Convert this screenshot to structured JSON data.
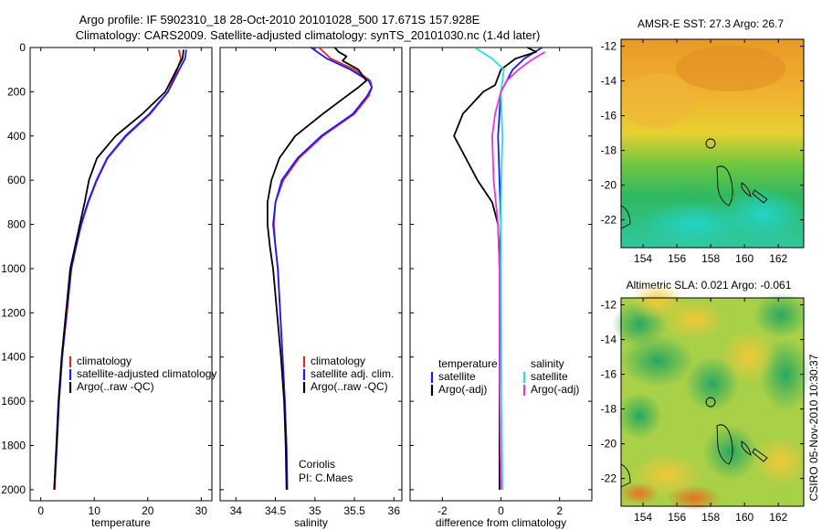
{
  "header": {
    "line1": "Argo profile: IF 5902310_18 28-Oct-2010 20101028_500 17.671S 157.928E",
    "line2": "Climatology: CARS2009. Satellite-adjusted climatology: synTS_20101030.nc (1.4d later)"
  },
  "side_stamp": "CSIRO 05-Nov-2010 10:30:37",
  "colors": {
    "climatology": "#e8261e",
    "satellite": "#1a1aff",
    "argo": "#000000",
    "cyan": "#22e0e8",
    "magenta": "#ee33dd"
  },
  "chart_data": [
    {
      "type": "line",
      "xlabel": "temperature",
      "xlim": [
        -2,
        32
      ],
      "ylim": [
        0,
        2050
      ],
      "y_reversed": true,
      "xticks": [
        0,
        10,
        20,
        30
      ],
      "yticks": [
        0,
        200,
        400,
        600,
        800,
        1000,
        1200,
        1400,
        1600,
        1800,
        2000
      ],
      "legend": [
        "climatology",
        "satellite-adjusted climatology",
        "Argo(..raw -QC)"
      ],
      "series": [
        {
          "name": "climatology",
          "color": "climatology",
          "points": [
            [
              25.8,
              10
            ],
            [
              26.2,
              50
            ],
            [
              25.5,
              100
            ],
            [
              23.8,
              200
            ],
            [
              20.5,
              300
            ],
            [
              16.0,
              400
            ],
            [
              12.5,
              500
            ],
            [
              10.5,
              600
            ],
            [
              8.9,
              700
            ],
            [
              7.6,
              800
            ],
            [
              6.6,
              900
            ],
            [
              5.7,
              1000
            ],
            [
              4.9,
              1200
            ],
            [
              4.0,
              1400
            ],
            [
              3.4,
              1600
            ],
            [
              3.0,
              1800
            ],
            [
              2.6,
              2000
            ]
          ]
        },
        {
          "name": "satellite-adjusted climatology",
          "color": "satellite",
          "points": [
            [
              27.2,
              10
            ],
            [
              27.0,
              50
            ],
            [
              25.9,
              100
            ],
            [
              23.8,
              200
            ],
            [
              20.3,
              300
            ],
            [
              15.8,
              400
            ],
            [
              12.4,
              500
            ],
            [
              10.4,
              600
            ],
            [
              8.8,
              700
            ],
            [
              7.5,
              800
            ],
            [
              6.6,
              900
            ],
            [
              5.7,
              1000
            ],
            [
              4.8,
              1200
            ],
            [
              4.0,
              1400
            ],
            [
              3.4,
              1600
            ],
            [
              3.0,
              1800
            ],
            [
              2.5,
              2000
            ]
          ]
        },
        {
          "name": "Argo(..raw -QC)",
          "color": "argo",
          "points": [
            [
              26.7,
              10
            ],
            [
              26.5,
              50
            ],
            [
              25.4,
              100
            ],
            [
              23.3,
              200
            ],
            [
              19.0,
              300
            ],
            [
              14.0,
              400
            ],
            [
              10.5,
              500
            ],
            [
              9.0,
              600
            ],
            [
              8.2,
              700
            ],
            [
              7.3,
              800
            ],
            [
              6.4,
              900
            ],
            [
              5.5,
              1000
            ],
            [
              4.7,
              1200
            ],
            [
              3.9,
              1400
            ],
            [
              3.3,
              1600
            ],
            [
              2.9,
              1800
            ],
            [
              2.5,
              2000
            ]
          ]
        }
      ]
    },
    {
      "type": "line",
      "xlabel": "salinity",
      "xlim": [
        33.8,
        36.1
      ],
      "ylim": [
        0,
        2050
      ],
      "y_reversed": true,
      "xticks": [
        34,
        34.5,
        35,
        35.5,
        36
      ],
      "legend": [
        "climatology",
        "satellite adj. clim.",
        "Argo(..raw -QC)"
      ],
      "notes": [
        "Coriolis",
        "PI: C.Maes"
      ],
      "series": [
        {
          "name": "climatology",
          "color": "climatology",
          "points": [
            [
              35.05,
              0
            ],
            [
              35.2,
              50
            ],
            [
              35.5,
              100
            ],
            [
              35.7,
              150
            ],
            [
              35.72,
              180
            ],
            [
              35.68,
              220
            ],
            [
              35.5,
              300
            ],
            [
              35.1,
              400
            ],
            [
              34.8,
              500
            ],
            [
              34.6,
              600
            ],
            [
              34.5,
              700
            ],
            [
              34.48,
              800
            ],
            [
              34.5,
              900
            ],
            [
              34.53,
              1000
            ],
            [
              34.56,
              1200
            ],
            [
              34.59,
              1400
            ],
            [
              34.62,
              1600
            ],
            [
              34.64,
              1800
            ],
            [
              34.65,
              2000
            ]
          ]
        },
        {
          "name": "satellite adj. clim.",
          "color": "satellite",
          "points": [
            [
              34.95,
              0
            ],
            [
              35.15,
              50
            ],
            [
              35.45,
              100
            ],
            [
              35.68,
              150
            ],
            [
              35.72,
              180
            ],
            [
              35.66,
              220
            ],
            [
              35.48,
              300
            ],
            [
              35.08,
              400
            ],
            [
              34.78,
              500
            ],
            [
              34.58,
              600
            ],
            [
              34.5,
              700
            ],
            [
              34.47,
              800
            ],
            [
              34.5,
              900
            ],
            [
              34.53,
              1000
            ],
            [
              34.56,
              1200
            ],
            [
              34.59,
              1400
            ],
            [
              34.62,
              1600
            ],
            [
              34.64,
              1800
            ],
            [
              34.65,
              2000
            ]
          ]
        },
        {
          "name": "Argo(..raw -QC)",
          "color": "argo",
          "points": [
            [
              35.25,
              0
            ],
            [
              35.3,
              20
            ],
            [
              35.4,
              40
            ],
            [
              35.35,
              60
            ],
            [
              35.55,
              100
            ],
            [
              35.65,
              150
            ],
            [
              35.55,
              180
            ],
            [
              35.4,
              220
            ],
            [
              35.1,
              300
            ],
            [
              34.75,
              400
            ],
            [
              34.55,
              500
            ],
            [
              34.45,
              600
            ],
            [
              34.4,
              700
            ],
            [
              34.4,
              800
            ],
            [
              34.43,
              900
            ],
            [
              34.47,
              1000
            ],
            [
              34.52,
              1200
            ],
            [
              34.57,
              1400
            ],
            [
              34.61,
              1600
            ],
            [
              34.63,
              1800
            ],
            [
              34.64,
              2000
            ]
          ]
        }
      ]
    },
    {
      "type": "line",
      "xlabel": "difference from climatology",
      "xlim": [
        -3.1,
        3.1
      ],
      "ylim": [
        0,
        2050
      ],
      "y_reversed": true,
      "xticks": [
        -2,
        0,
        2
      ],
      "legend_left": [
        "temperature",
        "satellite",
        "Argo(-adj)"
      ],
      "legend_right": [
        "salinity",
        "satellite",
        "Argo(-adj)"
      ],
      "series": [
        {
          "name": "satellite",
          "group": "temperature",
          "color": "satellite",
          "points": [
            [
              1.4,
              0
            ],
            [
              0.8,
              50
            ],
            [
              0.4,
              100
            ],
            [
              0.0,
              200
            ],
            [
              -0.1,
              400
            ],
            [
              -0.05,
              600
            ],
            [
              0.0,
              800
            ],
            [
              -0.05,
              1000
            ],
            [
              -0.05,
              1500
            ],
            [
              -0.05,
              2000
            ]
          ]
        },
        {
          "name": "Argo(-adj)",
          "group": "temperature",
          "color": "argo",
          "points": [
            [
              0.9,
              0
            ],
            [
              1.2,
              20
            ],
            [
              0.5,
              50
            ],
            [
              0.0,
              100
            ],
            [
              -0.2,
              170
            ],
            [
              -0.6,
              200
            ],
            [
              -1.3,
              300
            ],
            [
              -1.6,
              400
            ],
            [
              -1.2,
              500
            ],
            [
              -0.8,
              600
            ],
            [
              -0.3,
              700
            ],
            [
              -0.1,
              800
            ],
            [
              -0.05,
              1000
            ],
            [
              -0.05,
              1500
            ],
            [
              -0.05,
              2000
            ]
          ]
        },
        {
          "name": "satellite",
          "group": "salinity",
          "color": "cyan",
          "points": [
            [
              -0.9,
              0
            ],
            [
              -0.3,
              50
            ],
            [
              0.1,
              100
            ],
            [
              0.0,
              200
            ],
            [
              0.05,
              400
            ],
            [
              0.0,
              700
            ],
            [
              0.0,
              1000
            ],
            [
              0.02,
              1500
            ],
            [
              0.05,
              2000
            ]
          ]
        },
        {
          "name": "Argo(-adj)",
          "group": "salinity",
          "color": "magenta",
          "points": [
            [
              1.5,
              20
            ],
            [
              1.0,
              60
            ],
            [
              0.6,
              100
            ],
            [
              0.2,
              150
            ],
            [
              0.0,
              200
            ],
            [
              -0.2,
              300
            ],
            [
              -0.3,
              400
            ],
            [
              -0.25,
              600
            ],
            [
              -0.1,
              800
            ],
            [
              -0.05,
              1000
            ],
            [
              -0.05,
              1500
            ],
            [
              0.0,
              2000
            ]
          ]
        }
      ]
    }
  ],
  "maps": [
    {
      "title": "AMSR-E SST: 27.3 Argo: 26.7",
      "xticks": [
        154,
        156,
        158,
        160,
        162
      ],
      "yticks": [
        -12,
        -14,
        -16,
        -18,
        -20,
        -22
      ],
      "xlim": [
        152.7,
        163.5
      ],
      "ylim": [
        -23.6,
        -11.6
      ],
      "marker": [
        157.928,
        -17.671
      ]
    },
    {
      "title": "Altimetric SLA: 0.021 Argo: -0.061",
      "xticks": [
        154,
        156,
        158,
        160,
        162
      ],
      "yticks": [
        -12,
        -14,
        -16,
        -18,
        -20,
        -22
      ],
      "xlim": [
        152.7,
        163.5
      ],
      "ylim": [
        -23.6,
        -11.6
      ],
      "marker": [
        157.928,
        -17.671
      ]
    }
  ]
}
